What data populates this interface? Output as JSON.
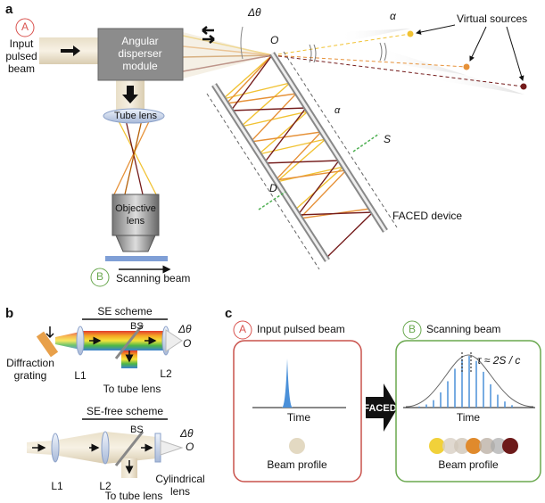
{
  "panel_a": {
    "label": "a",
    "input_marker": "A",
    "input_label": [
      "Input",
      "pulsed",
      "beam"
    ],
    "module_label": [
      "Angular",
      "disperser",
      "module"
    ],
    "delta_theta": "Δθ",
    "origin": "O",
    "alpha_top": "α",
    "virtual_sources": "Virtual sources",
    "tube_lens": "Tube lens",
    "objective_lens": [
      "Objective",
      "lens"
    ],
    "output_marker": "B",
    "scanning_beam": "Scanning beam",
    "s_label": "S",
    "d_label": "D",
    "alpha_device": "α",
    "device_label": "FACED device"
  },
  "panel_b": {
    "label": "b",
    "se_scheme": {
      "title": "SE scheme",
      "bs": "BS",
      "delta_theta": "Δθ",
      "origin": "O",
      "grating": [
        "Diffraction",
        "grating"
      ],
      "l1": "L1",
      "l2": "L2",
      "to_tube_lens": "To tube lens"
    },
    "se_free_scheme": {
      "title": "SE-free scheme",
      "bs": "BS",
      "delta_theta": "Δθ",
      "origin": "O",
      "l1": "L1",
      "l2": "L2",
      "cylindrical_lens": [
        "Cylindrical",
        "lens"
      ],
      "to_tube_lens": "To tube lens"
    }
  },
  "panel_c": {
    "label": "c",
    "input": {
      "marker": "A",
      "title": "Input pulsed beam",
      "time": "Time",
      "beam_profile": "Beam profile"
    },
    "arrow_label": "FACED",
    "output": {
      "marker": "B",
      "title": "Scanning beam",
      "tau": "τ ≈ 2S / c",
      "time": "Time",
      "beam_profile": "Beam profile"
    }
  }
}
